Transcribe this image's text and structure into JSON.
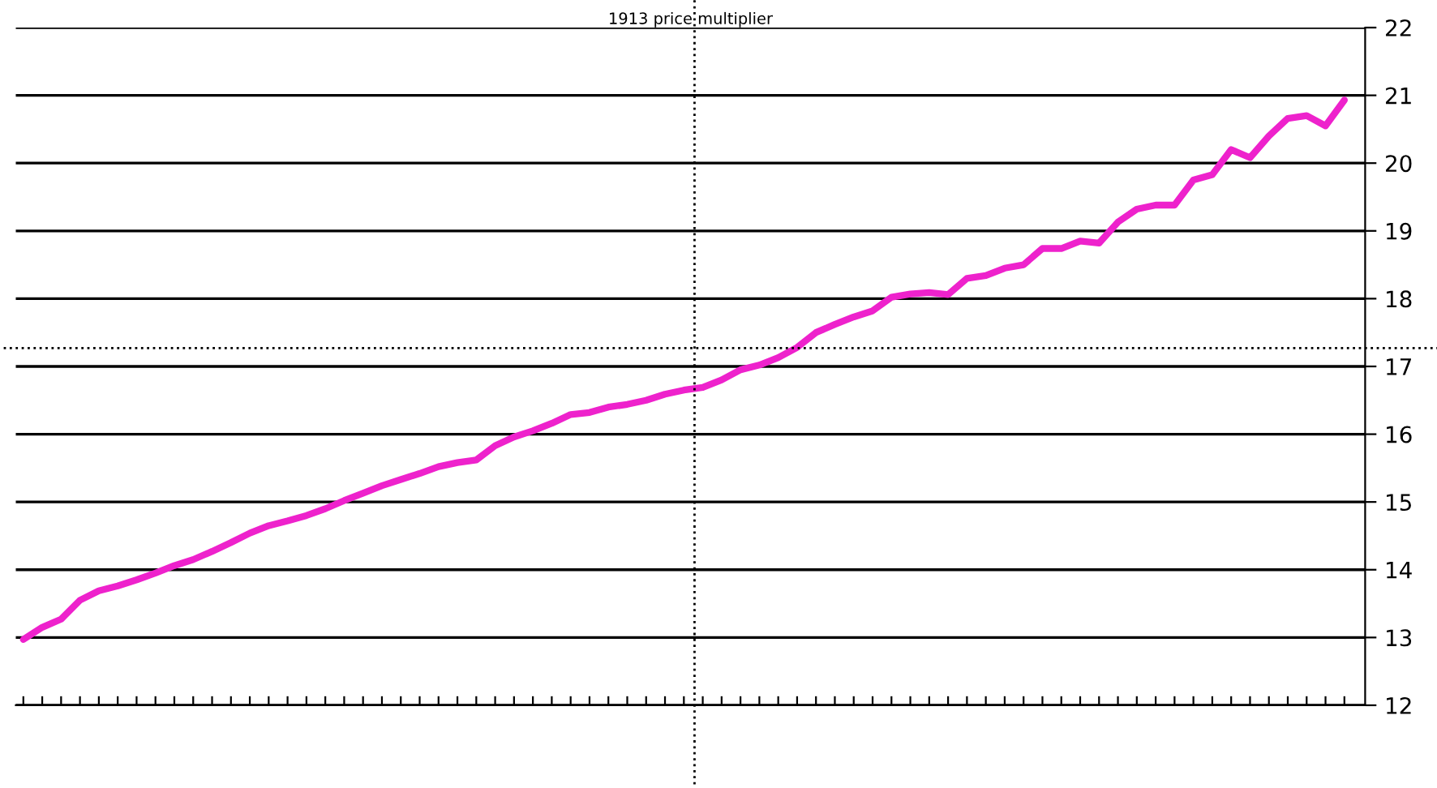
{
  "chart_data": {
    "type": "line",
    "title": "1913 price multiplier",
    "categories": [
      null,
      null,
      null,
      null,
      null,
      null,
      null,
      null,
      null,
      null,
      null,
      null,
      null,
      null,
      null,
      null,
      null,
      null,
      null,
      null,
      null,
      null,
      null,
      null,
      null,
      null,
      null,
      null,
      null,
      null,
      null,
      null,
      null,
      null,
      null,
      null,
      null,
      null,
      null,
      null,
      null,
      null,
      null,
      null,
      null,
      null,
      null,
      null,
      null,
      null,
      null,
      null,
      null,
      null,
      null,
      null,
      null,
      null,
      null,
      null,
      null,
      null,
      null,
      null,
      null,
      null,
      null,
      null,
      null,
      null,
      null
    ],
    "series": [
      {
        "color": "#ee22cc",
        "values": [
          12.97,
          13.15,
          13.27,
          13.55,
          13.69,
          13.76,
          13.85,
          13.95,
          14.06,
          14.15,
          14.27,
          14.4,
          14.54,
          14.65,
          14.72,
          14.8,
          14.9,
          15.02,
          15.13,
          15.24,
          15.33,
          15.42,
          15.52,
          15.58,
          15.62,
          15.83,
          15.96,
          16.05,
          16.16,
          16.29,
          16.32,
          16.4,
          16.44,
          16.5,
          16.59,
          16.65,
          16.69,
          16.8,
          16.95,
          17.02,
          17.13,
          17.28,
          17.5,
          17.62,
          17.73,
          17.82,
          18.02,
          18.07,
          18.09,
          18.06,
          18.3,
          18.34,
          18.45,
          18.5,
          18.74,
          18.74,
          18.85,
          18.82,
          19.13,
          19.32,
          19.38,
          19.38,
          19.75,
          19.83,
          20.2,
          20.08,
          20.4,
          20.66,
          20.7,
          20.55,
          20.93
        ]
      }
    ],
    "ylim": [
      12,
      22
    ],
    "yticks": [
      12,
      13,
      14,
      15,
      16,
      17,
      18,
      19,
      20,
      21,
      22
    ],
    "grid": "y",
    "tick_labels": "y",
    "marker": "none",
    "line_style": "solid",
    "ref_lines": [
      {
        "axis": "y",
        "value": 17.27,
        "color": "#000000",
        "line_style": "dotted"
      }
    ]
  }
}
